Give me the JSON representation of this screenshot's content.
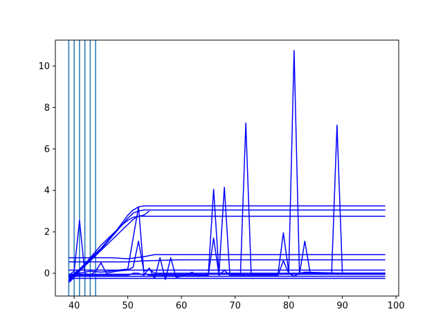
{
  "chart_data": {
    "type": "line",
    "title": "",
    "xlabel": "",
    "ylabel": "",
    "xlim": [
      36.5,
      100.5
    ],
    "ylim": [
      -1.1,
      11.25
    ],
    "x_ticks": [
      40,
      50,
      60,
      70,
      80,
      90,
      100
    ],
    "y_ticks": [
      0,
      2,
      4,
      6,
      8,
      10
    ],
    "grid": false,
    "legend": "none",
    "colors": {
      "series": "#0000ff",
      "vertical_lines": "#1f77b4",
      "axes": "#000000",
      "background": "#ffffff"
    },
    "vertical_lines_x": [
      39,
      40,
      41,
      42,
      43,
      44
    ],
    "y_range_of_vertical_lines": [
      -1.1,
      11.25
    ],
    "series": [
      {
        "points": [
          [
            39,
            -0.3
          ],
          [
            40,
            0.0
          ],
          [
            41,
            0.2
          ],
          [
            42,
            0.45
          ],
          [
            43,
            0.7
          ],
          [
            44,
            0.95
          ],
          [
            45,
            1.2
          ],
          [
            46,
            1.5
          ],
          [
            47,
            1.8
          ],
          [
            48,
            2.1
          ],
          [
            49,
            2.45
          ],
          [
            50,
            2.8
          ],
          [
            51,
            3.05
          ],
          [
            52,
            3.2
          ],
          [
            53,
            3.25
          ],
          [
            54,
            3.25
          ],
          [
            60,
            3.25
          ],
          [
            70,
            3.25
          ],
          [
            80,
            3.25
          ],
          [
            90,
            3.25
          ],
          [
            98,
            3.25
          ]
        ]
      },
      {
        "points": [
          [
            39,
            -0.35
          ],
          [
            40,
            -0.05
          ],
          [
            41,
            0.15
          ],
          [
            42,
            0.4
          ],
          [
            43,
            0.65
          ],
          [
            44,
            0.9
          ],
          [
            45,
            1.15
          ],
          [
            46,
            1.45
          ],
          [
            47,
            1.75
          ],
          [
            48,
            2.05
          ],
          [
            49,
            2.35
          ],
          [
            50,
            2.65
          ],
          [
            51,
            2.9
          ],
          [
            52,
            3.0
          ],
          [
            53,
            3.05
          ],
          [
            54,
            3.05
          ],
          [
            60,
            3.05
          ],
          [
            70,
            3.05
          ],
          [
            80,
            3.05
          ],
          [
            90,
            3.05
          ],
          [
            98,
            3.05
          ]
        ]
      },
      {
        "points": [
          [
            39,
            -0.45
          ],
          [
            40,
            -0.2
          ],
          [
            41,
            0.1
          ],
          [
            42,
            0.35
          ],
          [
            43,
            0.6
          ],
          [
            44,
            0.85
          ],
          [
            45,
            1.1
          ],
          [
            46,
            1.35
          ],
          [
            47,
            1.6
          ],
          [
            48,
            1.85
          ],
          [
            49,
            2.1
          ],
          [
            50,
            2.35
          ],
          [
            51,
            2.6
          ],
          [
            52,
            2.75
          ],
          [
            53,
            2.75
          ],
          [
            54,
            2.75
          ],
          [
            60,
            2.75
          ],
          [
            70,
            2.75
          ],
          [
            80,
            2.75
          ],
          [
            90,
            2.75
          ],
          [
            98,
            2.75
          ]
        ]
      },
      {
        "points": [
          [
            39,
            -0.4
          ],
          [
            40,
            -0.15
          ],
          [
            41,
            0.15
          ],
          [
            42,
            0.45
          ],
          [
            43,
            0.75
          ],
          [
            44,
            1.05
          ],
          [
            45,
            1.35
          ],
          [
            46,
            1.6
          ],
          [
            47,
            1.85
          ],
          [
            48,
            2.1
          ],
          [
            49,
            2.35
          ],
          [
            50,
            2.55
          ],
          [
            51,
            2.7
          ],
          [
            52,
            2.75
          ],
          [
            53,
            2.8
          ],
          [
            54,
            3.0
          ]
        ]
      },
      {
        "points": [
          [
            39,
            0.75
          ],
          [
            47,
            0.75
          ],
          [
            50,
            0.7
          ],
          [
            53,
            0.8
          ],
          [
            55,
            0.9
          ],
          [
            60,
            0.9
          ],
          [
            70,
            0.9
          ],
          [
            80,
            0.9
          ],
          [
            90,
            0.9
          ],
          [
            98,
            0.9
          ]
        ]
      },
      {
        "points": [
          [
            39,
            0.55
          ],
          [
            50,
            0.55
          ],
          [
            53,
            0.6
          ],
          [
            60,
            0.65
          ],
          [
            70,
            0.65
          ],
          [
            80,
            0.65
          ],
          [
            90,
            0.65
          ],
          [
            98,
            0.65
          ]
        ]
      },
      {
        "points": [
          [
            39,
            -0.1
          ],
          [
            40,
            0.1
          ],
          [
            41,
            2.55
          ],
          [
            42,
            0.0
          ],
          [
            43,
            -0.1
          ],
          [
            44,
            0.1
          ],
          [
            45,
            0.5
          ],
          [
            46,
            0.0
          ],
          [
            48,
            0.1
          ],
          [
            50,
            0.15
          ],
          [
            51,
            0.3
          ],
          [
            52,
            1.55
          ],
          [
            53,
            0.1
          ],
          [
            54,
            0.2
          ],
          [
            55,
            0.0
          ],
          [
            60,
            0.0
          ],
          [
            70,
            0.0
          ],
          [
            80,
            0.0
          ],
          [
            90,
            0.0
          ],
          [
            98,
            0.0
          ]
        ]
      },
      {
        "points": [
          [
            39,
            -0.2
          ],
          [
            41,
            0.0
          ],
          [
            43,
            0.1
          ],
          [
            45,
            0.05
          ],
          [
            50,
            0.2
          ],
          [
            52,
            3.2
          ],
          [
            53,
            0.0
          ],
          [
            54,
            -0.1
          ],
          [
            60,
            -0.1
          ],
          [
            65,
            -0.1
          ],
          [
            66,
            4.05
          ],
          [
            67,
            0.0
          ],
          [
            68,
            4.15
          ],
          [
            69,
            0.0
          ],
          [
            70,
            -0.05
          ],
          [
            71,
            -0.05
          ],
          [
            72,
            7.25
          ],
          [
            73,
            -0.05
          ],
          [
            78,
            -0.05
          ],
          [
            79,
            1.95
          ],
          [
            80,
            0.05
          ],
          [
            81,
            10.75
          ],
          [
            82,
            -0.05
          ],
          [
            83,
            1.55
          ],
          [
            84,
            0.0
          ],
          [
            88,
            0.0
          ],
          [
            89,
            7.15
          ],
          [
            90,
            0.0
          ],
          [
            98,
            0.0
          ]
        ]
      },
      {
        "points": [
          [
            39,
            -0.1
          ],
          [
            45,
            -0.1
          ],
          [
            50,
            -0.1
          ],
          [
            51,
            0.0
          ],
          [
            52,
            0.0
          ],
          [
            53,
            -0.1
          ],
          [
            54,
            0.25
          ],
          [
            55,
            -0.25
          ],
          [
            56,
            0.75
          ],
          [
            57,
            -0.3
          ],
          [
            58,
            0.75
          ],
          [
            59,
            -0.2
          ],
          [
            60,
            -0.15
          ],
          [
            62,
            0.05
          ],
          [
            63,
            -0.15
          ],
          [
            65,
            -0.1
          ],
          [
            66,
            1.7
          ],
          [
            67,
            -0.1
          ],
          [
            68,
            0.15
          ],
          [
            69,
            -0.1
          ],
          [
            78,
            -0.1
          ],
          [
            79,
            0.6
          ],
          [
            80,
            0.0
          ],
          [
            81,
            -0.15
          ],
          [
            82,
            0.0
          ],
          [
            83,
            0.05
          ],
          [
            90,
            0.0
          ],
          [
            98,
            0.0
          ]
        ]
      },
      {
        "points": [
          [
            39,
            0.15
          ],
          [
            50,
            0.15
          ],
          [
            60,
            0.15
          ],
          [
            70,
            0.15
          ],
          [
            80,
            0.15
          ],
          [
            90,
            0.15
          ],
          [
            98,
            0.15
          ]
        ]
      },
      {
        "points": [
          [
            39,
            -0.05
          ],
          [
            50,
            -0.05
          ],
          [
            60,
            -0.05
          ],
          [
            70,
            -0.05
          ],
          [
            80,
            -0.05
          ],
          [
            90,
            -0.05
          ],
          [
            98,
            -0.05
          ]
        ]
      },
      {
        "points": [
          [
            39,
            -0.15
          ],
          [
            50,
            -0.15
          ],
          [
            60,
            -0.15
          ],
          [
            70,
            -0.15
          ],
          [
            80,
            -0.15
          ],
          [
            90,
            -0.15
          ],
          [
            98,
            -0.15
          ]
        ]
      },
      {
        "points": [
          [
            39,
            -0.25
          ],
          [
            50,
            -0.25
          ],
          [
            60,
            -0.25
          ],
          [
            70,
            -0.25
          ],
          [
            80,
            -0.25
          ],
          [
            90,
            -0.25
          ],
          [
            98,
            -0.25
          ]
        ]
      }
    ]
  }
}
